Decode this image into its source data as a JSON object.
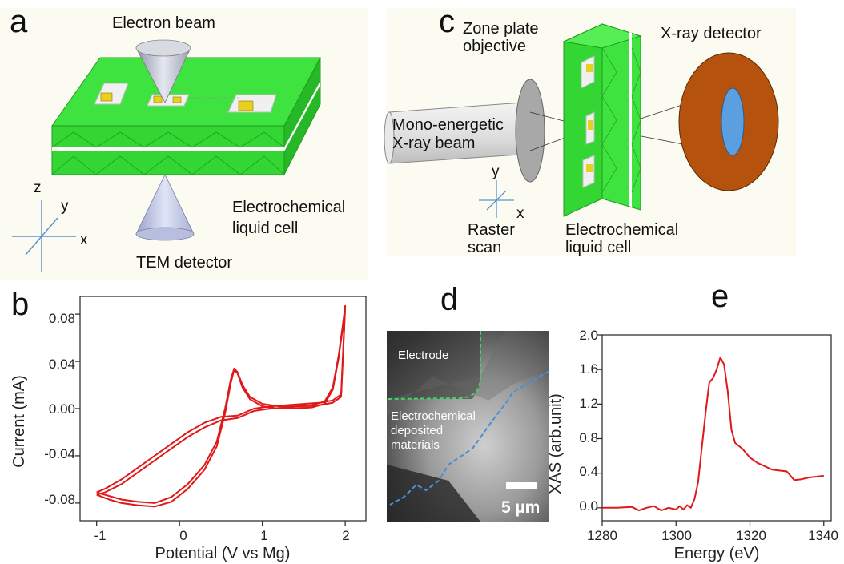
{
  "panels": {
    "a": {
      "letter": "a",
      "electron_beam": "Electron beam",
      "tem_detector": "TEM detector",
      "cell_label_1": "Electrochemical",
      "cell_label_2": "liquid cell",
      "axes": {
        "z": "z",
        "y": "y",
        "x": "x"
      }
    },
    "b": {
      "letter": "b",
      "xlabel": "Potential (V vs Mg)",
      "ylabel": "Current (mA)",
      "xticks": [
        "-1",
        "0",
        "1",
        "2"
      ],
      "yticks": [
        "0.08",
        "0.04",
        "0.00",
        "-0.04",
        "-0.08"
      ]
    },
    "c": {
      "letter": "c",
      "zone_plate_1": "Zone plate",
      "zone_plate_2": "objective",
      "xray_detector": "X-ray detector",
      "beam_1": "Mono-energetic",
      "beam_2": "X-ray beam",
      "raster_1": "Raster",
      "raster_2": "scan",
      "cell_label_1": "Electrochemical",
      "cell_label_2": "liquid cell",
      "axes": {
        "y": "y",
        "x": "x"
      }
    },
    "d": {
      "letter": "d",
      "electrode": "Electrode",
      "deposit_1": "Electrochemical",
      "deposit_2": "deposited",
      "deposit_3": "materials",
      "scalebar": "5 µm"
    },
    "e": {
      "letter": "e",
      "xlabel": "Energy (eV)",
      "ylabel": "XAS (arb.unit)",
      "xticks": [
        "1280",
        "1300",
        "1320",
        "1340"
      ],
      "yticks": [
        "2.0",
        "1.6",
        "1.2",
        "0.8",
        "0.4",
        "0.0"
      ]
    }
  },
  "chart_data": [
    {
      "panel": "b",
      "type": "line",
      "xlabel": "Potential (V vs Mg)",
      "ylabel": "Current (mA)",
      "xlim": [
        -1.2,
        2.25
      ],
      "ylim": [
        -0.095,
        0.095
      ],
      "series": [
        {
          "x": [
            -1.0,
            -0.85,
            -0.7,
            -0.5,
            -0.3,
            -0.1,
            0.1,
            0.3,
            0.45,
            0.55,
            0.62,
            0.66,
            0.7,
            0.76,
            0.85,
            1.0,
            1.2,
            1.4,
            1.6,
            1.75,
            1.85,
            1.92,
            1.97,
            2.0,
            1.95,
            1.85,
            1.7,
            1.5,
            1.3,
            1.1,
            0.9,
            0.7,
            0.5,
            0.3,
            0.1,
            -0.1,
            -0.3,
            -0.5,
            -0.7,
            -0.9,
            -1.0
          ],
          "y": [
            -0.071,
            -0.074,
            -0.077,
            -0.079,
            -0.08,
            -0.075,
            -0.064,
            -0.048,
            -0.028,
            0.0,
            0.025,
            0.034,
            0.031,
            0.02,
            0.01,
            0.004,
            0.002,
            0.002,
            0.003,
            0.006,
            0.018,
            0.045,
            0.07,
            0.087,
            0.012,
            0.007,
            0.005,
            0.004,
            0.003,
            0.002,
            0.0,
            -0.006,
            -0.007,
            -0.012,
            -0.02,
            -0.03,
            -0.04,
            -0.05,
            -0.06,
            -0.068,
            -0.071
          ]
        },
        {
          "x": [
            -1.0,
            -0.85,
            -0.7,
            -0.5,
            -0.3,
            -0.1,
            0.1,
            0.3,
            0.45,
            0.55,
            0.62,
            0.66,
            0.7,
            0.76,
            0.85,
            1.0,
            1.2,
            1.4,
            1.6,
            1.75,
            1.85,
            1.92,
            1.97,
            2.0,
            1.95,
            1.85,
            1.7,
            1.5,
            1.3,
            1.1,
            0.9,
            0.7,
            0.5,
            0.3,
            0.1,
            -0.1,
            -0.3,
            -0.5,
            -0.7,
            -0.9,
            -1.0
          ],
          "y": [
            -0.073,
            -0.077,
            -0.08,
            -0.082,
            -0.083,
            -0.079,
            -0.068,
            -0.052,
            -0.032,
            -0.004,
            0.022,
            0.033,
            0.03,
            0.018,
            0.008,
            0.002,
            0.0,
            0.0,
            0.001,
            0.004,
            0.016,
            0.043,
            0.068,
            0.086,
            0.01,
            0.005,
            0.003,
            0.002,
            0.001,
            0.0,
            -0.002,
            -0.008,
            -0.01,
            -0.016,
            -0.024,
            -0.034,
            -0.044,
            -0.054,
            -0.064,
            -0.071,
            -0.073
          ]
        }
      ]
    },
    {
      "panel": "e",
      "type": "line",
      "xlabel": "Energy (eV)",
      "ylabel": "XAS (arb.unit)",
      "xlim": [
        1280,
        1342
      ],
      "ylim": [
        -0.15,
        2.0
      ],
      "series": [
        {
          "x": [
            1280,
            1284,
            1288,
            1290,
            1292,
            1294,
            1296,
            1298,
            1300,
            1301,
            1302,
            1303,
            1304,
            1305,
            1306,
            1307,
            1308,
            1309,
            1310,
            1311,
            1312,
            1313,
            1314,
            1315,
            1316,
            1318,
            1320,
            1322,
            1324,
            1326,
            1328,
            1330,
            1332,
            1334,
            1336,
            1338,
            1340
          ],
          "y": [
            0.0,
            0.0,
            0.01,
            -0.03,
            0.0,
            0.02,
            -0.03,
            0.0,
            -0.02,
            0.02,
            -0.02,
            0.03,
            0.0,
            0.1,
            0.3,
            0.7,
            1.1,
            1.45,
            1.5,
            1.6,
            1.74,
            1.66,
            1.35,
            0.9,
            0.75,
            0.68,
            0.58,
            0.52,
            0.48,
            0.44,
            0.43,
            0.42,
            0.32,
            0.33,
            0.35,
            0.36,
            0.37
          ]
        }
      ]
    }
  ]
}
